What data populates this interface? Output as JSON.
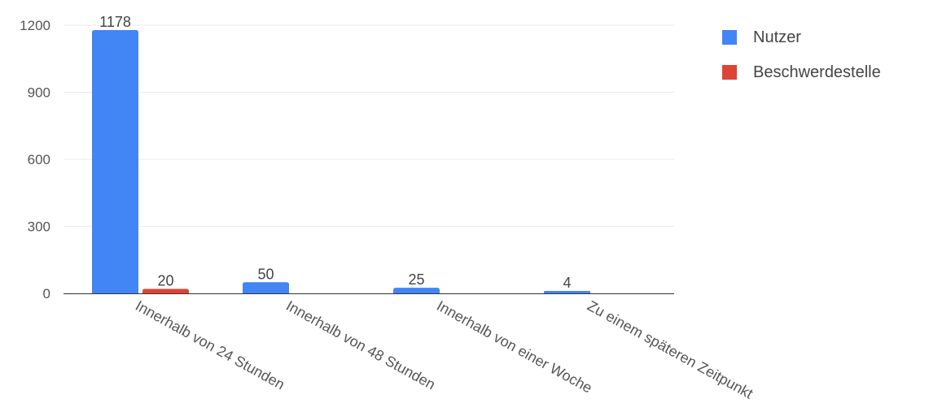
{
  "chart_data": {
    "type": "bar",
    "categories": [
      "Innerhalb von 24 Stunden",
      "Innerhalb von 48 Stunden",
      "Innerhalb von einer Woche",
      "Zu einem späteren Zeitpunkt"
    ],
    "series": [
      {
        "name": "Nutzer",
        "values": [
          1178,
          50,
          25,
          4
        ],
        "color": "#4285f4"
      },
      {
        "name": "Beschwerdestelle",
        "values": [
          20,
          null,
          null,
          null
        ],
        "color": "#db4437"
      }
    ],
    "yticks": [
      0,
      300,
      600,
      900,
      1200
    ],
    "ylim": [
      0,
      1200
    ],
    "grid": true,
    "legend_position": "right"
  }
}
